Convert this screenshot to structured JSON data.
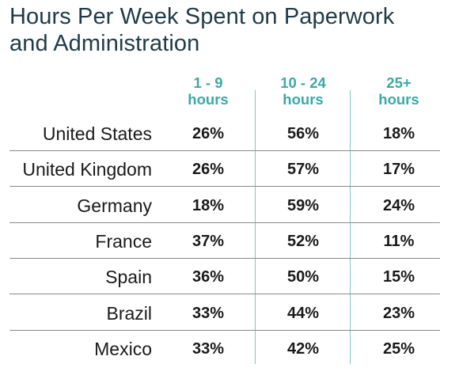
{
  "chart_data": {
    "type": "table",
    "title": "Hours Per Week Spent on Paperwork and Administration",
    "title_lines": [
      "Hours Per Week Spent on Paperwork",
      "and Administration"
    ],
    "columns": [
      {
        "line1": "1 - 9",
        "line2": "hours"
      },
      {
        "line1": "10 - 24",
        "line2": "hours"
      },
      {
        "line1": "25+",
        "line2": "hours"
      }
    ],
    "rows": [
      {
        "country": "United States",
        "values": [
          "26%",
          "56%",
          "18%"
        ]
      },
      {
        "country": "United Kingdom",
        "values": [
          "26%",
          "57%",
          "17%"
        ]
      },
      {
        "country": "Germany",
        "values": [
          "18%",
          "59%",
          "24%"
        ]
      },
      {
        "country": "France",
        "values": [
          "37%",
          "52%",
          "11%"
        ]
      },
      {
        "country": "Spain",
        "values": [
          "36%",
          "50%",
          "15%"
        ]
      },
      {
        "country": "Brazil",
        "values": [
          "33%",
          "44%",
          "23%"
        ]
      },
      {
        "country": "Mexico",
        "values": [
          "33%",
          "42%",
          "25%"
        ]
      }
    ]
  },
  "colors": {
    "title": "#1f3b46",
    "header": "#3aa9a8",
    "divider": "#7fc8c6",
    "row_line": "#8a8a8a"
  }
}
